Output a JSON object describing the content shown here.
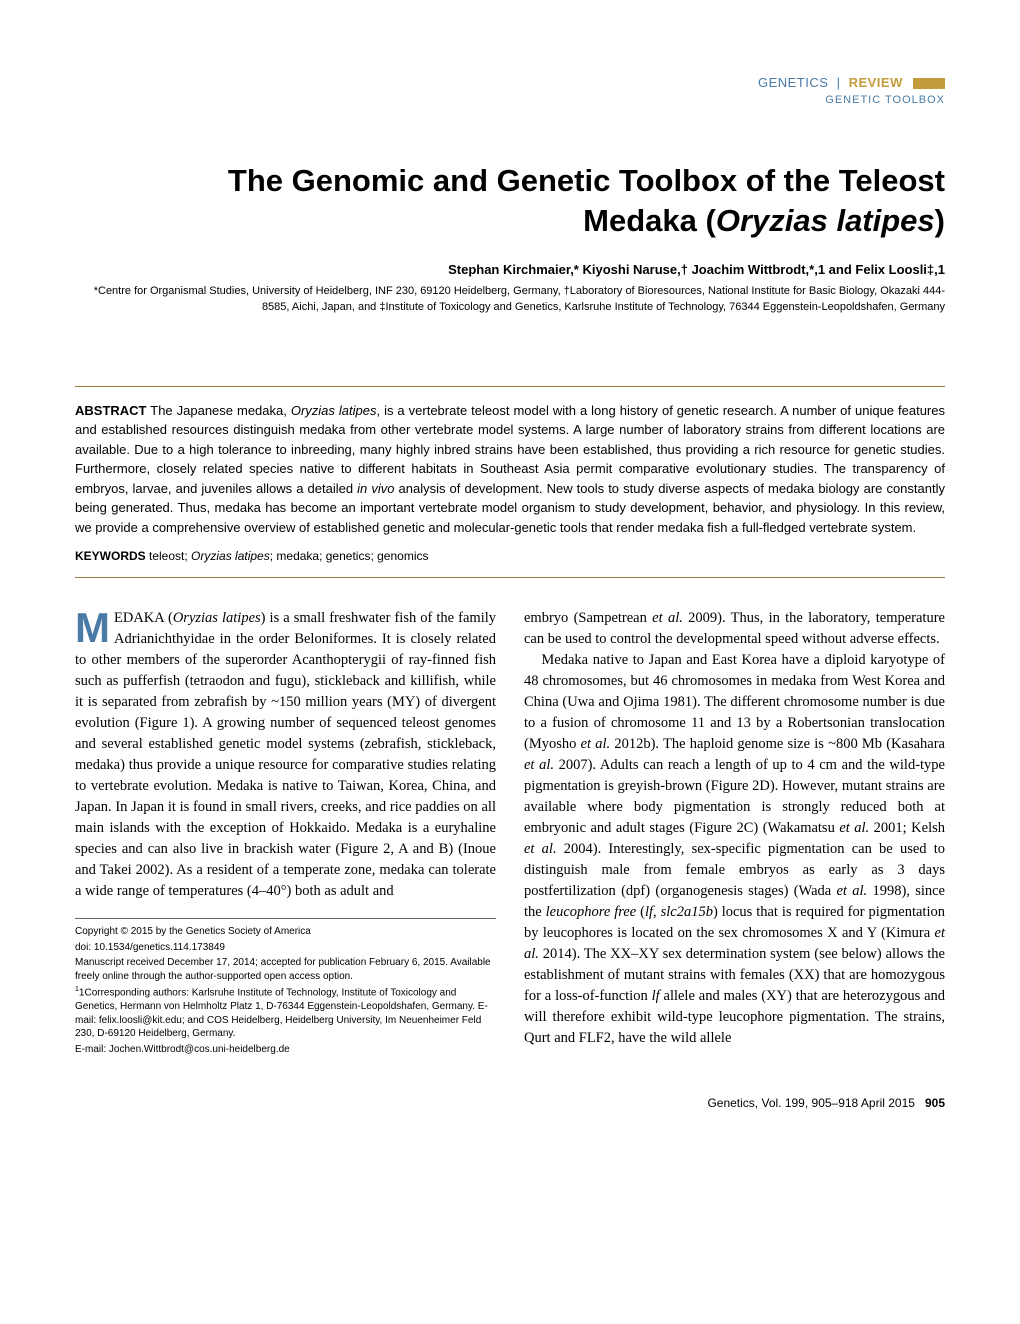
{
  "header": {
    "journal": "GENETICS",
    "type": "REVIEW",
    "section": "GENETIC TOOLBOX",
    "accent_color": "#4a7ba6",
    "review_color": "#c39b3a"
  },
  "title_line1": "The Genomic and Genetic Toolbox of the Teleost",
  "title_line2_pre": "Medaka (",
  "title_line2_em": "Oryzias latipes",
  "title_line2_post": ")",
  "authors": "Stephan Kirchmaier,* Kiyoshi Naruse,† Joachim Wittbrodt,*,1 and Felix Loosli‡,1",
  "affiliations": "*Centre for Organismal Studies, University of Heidelberg, INF 230, 69120 Heidelberg, Germany, †Laboratory of Bioresources, National Institute for Basic Biology, Okazaki 444-8585, Aichi, Japan, and ‡Institute of Toxicology and Genetics, Karlsruhe Institute of Technology, 76344 Eggenstein-Leopoldshafen, Germany",
  "abstract": {
    "label": "ABSTRACT",
    "text_pre": " The Japanese medaka, ",
    "species": "Oryzias latipes",
    "text_mid": ", is a vertebrate teleost model with a long history of genetic research. A number of unique features and established resources distinguish medaka from other vertebrate model systems. A large number of laboratory strains from different locations are available. Due to a high tolerance to inbreeding, many highly inbred strains have been established, thus providing a rich resource for genetic studies. Furthermore, closely related species native to different habitats in Southeast Asia permit comparative evolutionary studies. The transparency of embryos, larvae, and juveniles allows a detailed ",
    "invivo": "in vivo",
    "text_end": " analysis of development. New tools to study diverse aspects of medaka biology are constantly being generated. Thus, medaka has become an important vertebrate model organism to study development, behavior, and physiology. In this review, we provide a comprehensive overview of established genetic and molecular-genetic tools that render medaka fish a full-fledged vertebrate system."
  },
  "keywords": {
    "label": "KEYWORDS",
    "text_pre": " teleost; ",
    "species": "Oryzias latipes",
    "text_post": "; medaka; genetics; genomics"
  },
  "body": {
    "dropcap": "M",
    "col1_p1_pre": "EDAKA (",
    "col1_p1_sp": "Oryzias latipes",
    "col1_p1_post": ") is a small freshwater fish of the family Adrianichthyidae in the order Beloniformes. It is closely related to other members of the superorder Acanthopterygii of ray-finned fish such as pufferfish (tetraodon and fugu), stickleback and killifish, while it is separated from zebrafish by ~150 million years (MY) of divergent evolution (Figure 1). A growing number of sequenced teleost genomes and several established genetic model systems (zebrafish, stickleback, medaka) thus provide a unique resource for comparative studies relating to vertebrate evolution. Medaka is native to Taiwan, Korea, China, and Japan. In Japan it is found in small rivers, creeks, and rice paddies on all main islands with the exception of Hokkaido. Medaka is a euryhaline species and can also live in brackish water (Figure 2, A and B) (Inoue and Takei 2002). As a resident of a temperate zone, medaka can tolerate a wide range of temperatures (4–40°) both as adult and",
    "col2_p1_pre": "embryo (Sampetrean ",
    "col2_p1_em1": "et al.",
    "col2_p1_post": " 2009). Thus, in the laboratory, temperature can be used to control the developmental speed without adverse effects.",
    "col2_p2_a": "Medaka native to Japan and East Korea have a diploid karyotype of 48 chromosomes, but 46 chromosomes in medaka from West Korea and China (Uwa and Ojima 1981). The different chromosome number is due to a fusion of chromosome 11 and 13 by a Robertsonian translocation (Myosho ",
    "col2_p2_em1": "et al.",
    "col2_p2_b": " 2012b). The haploid genome size is ~800 Mb (Kasahara ",
    "col2_p2_em2": "et al.",
    "col2_p2_c": " 2007). Adults can reach a length of up to 4 cm and the wild-type pigmentation is greyish-brown (Figure 2D). However, mutant strains are available where body pigmentation is strongly reduced both at embryonic and adult stages (Figure 2C) (Wakamatsu ",
    "col2_p2_em3": "et al.",
    "col2_p2_d": " 2001; Kelsh ",
    "col2_p2_em4": "et al.",
    "col2_p2_e": " 2004). Interestingly, sex-specific pigmentation can be used to distinguish male from female embryos as early as 3 days postfertilization (dpf) (organogenesis stages) (Wada ",
    "col2_p2_em5": "et al.",
    "col2_p2_f": " 1998), since the ",
    "col2_p2_em6": "leucophore free",
    "col2_p2_g": " (",
    "col2_p2_em7": "lf",
    "col2_p2_h": ", ",
    "col2_p2_em8": "slc2a15b",
    "col2_p2_i": ") locus that is required for pigmentation by leucophores is located on the sex chromosomes X and Y (Kimura ",
    "col2_p2_em9": "et al.",
    "col2_p2_j": " 2014). The XX–XY sex determination system (see below) allows the establishment of mutant strains with females (XX) that are homozygous for a loss-of-function ",
    "col2_p2_em10": "lf",
    "col2_p2_k": " allele and males (XY) that are heterozygous and will therefore exhibit wild-type leucophore pigmentation. The strains, Qurt and FLF2, have the wild allele"
  },
  "footnotes": {
    "copyright": "Copyright © 2015 by the Genetics Society of America",
    "doi": "doi: 10.1534/genetics.114.173849",
    "manuscript": "Manuscript received December 17, 2014; accepted for publication February 6, 2015. Available freely online through the author-supported open access option.",
    "corresponding": "1Corresponding authors: Karlsruhe Institute of Technology, Institute of Toxicology and Genetics, Hermann von Helmholtz Platz 1, D-76344 Eggenstein-Leopoldshafen, Germany. E-mail: felix.loosli@kit.edu; and COS Heidelberg, Heidelberg University, Im Neuenheimer Feld 230, D-69120 Heidelberg, Germany.",
    "email": "E-mail: Jochen.Wittbrodt@cos.uni-heidelberg.de"
  },
  "footer": {
    "citation": "Genetics, Vol. 199, 905–918   April 2015",
    "page": "905"
  }
}
